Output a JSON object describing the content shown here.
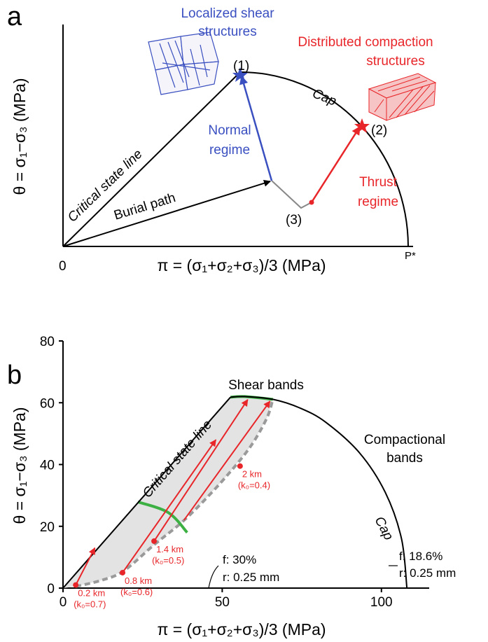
{
  "panel_a": {
    "label": "a",
    "localized": [
      "Localized shear",
      "structures"
    ],
    "distributed": [
      "Distributed compaction",
      "structures"
    ],
    "point_1": "(1)",
    "point_2": "(2)",
    "point_3": "(3)",
    "cap": "Cap",
    "normal": [
      "Normal",
      "regime"
    ],
    "thrust": [
      "Thrust",
      "regime"
    ],
    "critical_state_line": "Critical state line",
    "burial_path": "Burial path",
    "y_label": "θ = σ₁−σ₃ (MPa)",
    "x_label": "π = (σ₁+σ₂+σ₃)/3 (MPa)",
    "origin": "0",
    "p_star": "P*"
  },
  "chart_data": {
    "type": "line",
    "panel_label": "b",
    "x_label": "π = (σ₁+σ₂+σ₃)/3 (MPa)",
    "y_label": "θ = σ₁−σ₃ (MPa)",
    "xlim": [
      0,
      115
    ],
    "ylim": [
      0,
      80
    ],
    "xticks": [
      0,
      50,
      100
    ],
    "yticks": [
      0,
      20,
      40,
      60,
      80
    ],
    "series": [
      {
        "name": "Critical state line",
        "color": "#000000",
        "x": [
          0,
          52.6
        ],
        "y": [
          0,
          61.8
        ]
      },
      {
        "name": "Cap",
        "color": "#000000",
        "x": [
          52.6,
          57,
          65.9,
          74.4,
          82.5,
          93.1,
          101.2,
          106.3,
          108
        ],
        "y": [
          61.8,
          62,
          61.1,
          58.3,
          53.7,
          43.8,
          31,
          16,
          0
        ]
      },
      {
        "name": "Shear bands",
        "color": "#3cb043",
        "x": [
          52.6,
          57,
          65.9
        ],
        "y": [
          61.8,
          62,
          61.1
        ]
      },
      {
        "color": "#3cb043",
        "x": [
          23.5,
          33,
          39
        ],
        "y": [
          27.9,
          24.5,
          18
        ]
      },
      {
        "color": "#9a9a9a",
        "dashed": true,
        "x": [
          4,
          12,
          19,
          28.6,
          37,
          44,
          52,
          59,
          64,
          65.9
        ],
        "y": [
          0.5,
          2.5,
          5.5,
          14,
          21,
          28,
          37,
          46,
          55,
          61.1
        ]
      }
    ],
    "stress_path_color": "#e8262a",
    "stress_paths": [
      {
        "x": [
          4,
          10
        ],
        "y": [
          1,
          13
        ]
      },
      {
        "x": [
          18.7,
          48
        ],
        "y": [
          5,
          48
        ]
      },
      {
        "x": [
          28.6,
          58
        ],
        "y": [
          15.2,
          61
        ]
      },
      {
        "x": [
          38,
          65
        ],
        "y": [
          22,
          60.5
        ]
      }
    ],
    "depth_points": [
      {
        "label": "0.2 km",
        "k0_label": "(k₀=0.7)",
        "x": 4,
        "y": 1
      },
      {
        "label": "0.8 km",
        "k0_label": "(k₀=0.6)",
        "x": 18.7,
        "y": 5
      },
      {
        "label": "1.4 km",
        "k0_label": "(k₀=0.5)",
        "x": 28.6,
        "y": 15.2
      },
      {
        "label": "2 km",
        "k0_label": "(k₀=0.4)",
        "x": 55.6,
        "y": 39.5
      }
    ],
    "annotations": {
      "compactional": [
        "Compactional",
        "bands"
      ],
      "f30": [
        "f: 30%",
        "r: 0.25 mm"
      ],
      "f186": [
        "f: 18.6%",
        "r: 0.25 mm"
      ]
    }
  }
}
